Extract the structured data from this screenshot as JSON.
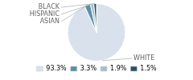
{
  "chart_data": {
    "type": "pie",
    "categories": [
      "WHITE",
      "ASIAN",
      "HISPANIC",
      "BLACK"
    ],
    "values": [
      93.3,
      3.3,
      1.9,
      1.5
    ],
    "value_labels": [
      "93.3%",
      "3.3%",
      "1.9%",
      "1.5%"
    ],
    "colors": [
      "#d9e2ec",
      "#5b8fa8",
      "#a8bfcc",
      "#2c4f6b"
    ],
    "legend": "bottom"
  }
}
